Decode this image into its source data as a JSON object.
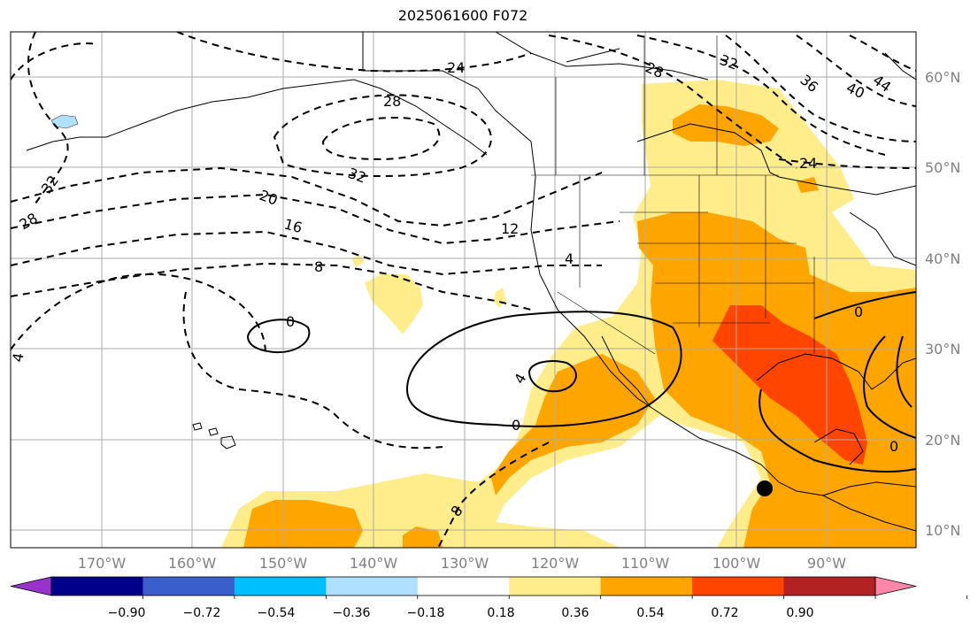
{
  "title": "2025061600 F072",
  "map": {
    "projection": "equirectangular",
    "lon_range": [
      -180,
      -80
    ],
    "lat_range": [
      8,
      65
    ],
    "lon_ticks": [
      "170°W",
      "160°W",
      "150°W",
      "140°W",
      "130°W",
      "120°W",
      "110°W",
      "100°W",
      "90°W"
    ],
    "lat_ticks": [
      "10°N",
      "20°N",
      "30°N",
      "40°N",
      "50°N",
      "60°N"
    ],
    "marker": {
      "lon": -96,
      "lat": 14.5,
      "color": "#000000"
    }
  },
  "contour_labels": [
    "24",
    "28",
    "32",
    "36",
    "40",
    "44",
    "28",
    "32",
    "24",
    "32",
    "20",
    "16",
    "12",
    "8",
    "4",
    "0",
    "0",
    "4",
    "0",
    "4",
    "8",
    "28",
    "0"
  ],
  "colorbar": {
    "ticks": [
      "−0.90",
      "−0.72",
      "−0.54",
      "−0.36",
      "−0.18",
      "0.18",
      "0.36",
      "0.54",
      "0.72",
      "0.90"
    ],
    "colors": [
      "#9932cc",
      "#00008b",
      "#3a5fcd",
      "#00bfff",
      "#b0e0ff",
      "#ffffff",
      "#ffec8b",
      "#ffa500",
      "#ff4500",
      "#b22222",
      "#ff88aa"
    ]
  },
  "fill_colors": {
    "light": "#ffec8b",
    "mid": "#ffa500",
    "high": "#ff4500",
    "neg": "#b0e0ff"
  }
}
